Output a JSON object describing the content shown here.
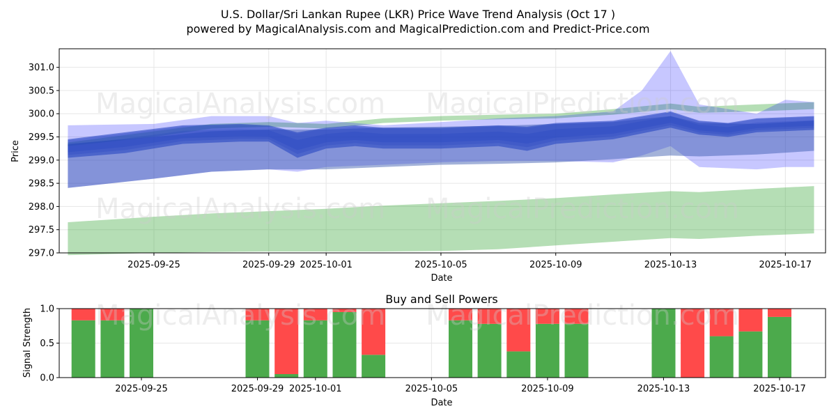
{
  "title_line1": "U.S. Dollar/Sri Lankan Rupee (LKR) Price Wave Trend Analysis (Oct 17 )",
  "title_line2": "powered by MagicalAnalysis.com and MagicalPrediction.com and Predict-Price.com",
  "watermarks": [
    "MagicalAnalysis.com",
    "MagicalPrediction.com"
  ],
  "colors": {
    "green_band": "#2ca02c",
    "blue_band": "#0000ff",
    "blue_dark": "#1f3fbf",
    "buy": "#4caa4c",
    "sell": "#ff4a4a",
    "grid": "#e6e6e6"
  },
  "chart_data": [
    {
      "type": "area",
      "title": "",
      "xlabel": "Date",
      "ylabel": "Price",
      "ylim": [
        297.0,
        301.4
      ],
      "xlim": [
        "2025-09-21.7",
        "2025-10-18.4"
      ],
      "yticks": [
        297.0,
        297.5,
        298.0,
        298.5,
        299.0,
        299.5,
        300.0,
        300.5,
        301.0
      ],
      "ytick_labels": [
        "297.0",
        "297.5",
        "298.0",
        "298.5",
        "299.0",
        "299.5",
        "300.0",
        "300.5",
        "301.0"
      ],
      "xticks": [
        "2025-09-25",
        "2025-09-29",
        "2025-10-01",
        "2025-10-05",
        "2025-10-09",
        "2025-10-13",
        "2025-10-17"
      ],
      "grid": true,
      "series": [
        {
          "name": "green upper band",
          "x": [
            "2025-09-22",
            "2025-09-25",
            "2025-09-27",
            "2025-09-29",
            "2025-10-01",
            "2025-10-03",
            "2025-10-05",
            "2025-10-07",
            "2025-10-09",
            "2025-10-11",
            "2025-10-13",
            "2025-10-14",
            "2025-10-16",
            "2025-10-18"
          ],
          "upper": [
            299.38,
            299.62,
            299.78,
            299.82,
            299.78,
            299.9,
            299.95,
            299.98,
            300.0,
            300.1,
            300.22,
            300.15,
            300.2,
            300.25
          ],
          "lower": [
            299.3,
            299.5,
            299.68,
            299.72,
            299.68,
            299.8,
            299.85,
            299.88,
            299.9,
            299.98,
            300.1,
            300.02,
            300.05,
            300.1
          ]
        },
        {
          "name": "green lower band",
          "x": [
            "2025-09-22",
            "2025-09-25",
            "2025-09-27",
            "2025-09-29",
            "2025-10-01",
            "2025-10-03",
            "2025-10-05",
            "2025-10-07",
            "2025-10-09",
            "2025-10-11",
            "2025-10-13",
            "2025-10-14",
            "2025-10-16",
            "2025-10-18"
          ],
          "upper": [
            297.66,
            297.78,
            297.85,
            297.9,
            297.95,
            298.02,
            298.07,
            298.12,
            298.18,
            298.26,
            298.33,
            298.31,
            298.38,
            298.44
          ],
          "lower": [
            296.95,
            297.0,
            297.02,
            297.03,
            297.03,
            297.03,
            297.04,
            297.08,
            297.16,
            297.24,
            297.32,
            297.3,
            297.37,
            297.42
          ]
        },
        {
          "name": "blue wide range",
          "x": [
            "2025-09-22",
            "2025-09-25",
            "2025-09-27",
            "2025-09-29",
            "2025-09-30",
            "2025-10-01",
            "2025-10-03",
            "2025-10-05",
            "2025-10-07",
            "2025-10-09",
            "2025-10-11",
            "2025-10-12",
            "2025-10-13",
            "2025-10-14",
            "2025-10-16",
            "2025-10-17",
            "2025-10-18"
          ],
          "upper": [
            299.75,
            299.78,
            299.95,
            299.95,
            299.8,
            299.85,
            299.75,
            299.82,
            299.9,
            299.95,
            300.05,
            300.5,
            301.35,
            300.2,
            300.0,
            300.3,
            300.25
          ],
          "lower": [
            298.4,
            298.6,
            298.75,
            298.8,
            298.75,
            298.85,
            298.9,
            298.95,
            298.98,
            298.98,
            298.95,
            299.1,
            299.3,
            298.85,
            298.8,
            298.85,
            298.85
          ]
        },
        {
          "name": "blue core trend",
          "x": [
            "2025-09-22",
            "2025-09-24",
            "2025-09-26",
            "2025-09-28",
            "2025-09-29",
            "2025-09-30",
            "2025-10-01",
            "2025-10-02",
            "2025-10-03",
            "2025-10-05",
            "2025-10-07",
            "2025-10-08",
            "2025-10-09",
            "2025-10-11",
            "2025-10-13",
            "2025-10-14",
            "2025-10-15",
            "2025-10-16",
            "2025-10-18"
          ],
          "upper": [
            299.45,
            299.6,
            299.75,
            299.78,
            299.75,
            299.6,
            299.7,
            299.75,
            299.7,
            299.7,
            299.75,
            299.72,
            299.8,
            299.85,
            300.05,
            299.85,
            299.8,
            299.9,
            299.95
          ],
          "lower": [
            299.05,
            299.15,
            299.35,
            299.4,
            299.4,
            299.05,
            299.25,
            299.3,
            299.25,
            299.25,
            299.3,
            299.2,
            299.35,
            299.45,
            299.7,
            299.55,
            299.5,
            299.6,
            299.65
          ]
        },
        {
          "name": "slate blue band",
          "x": [
            "2025-09-22",
            "2025-09-25",
            "2025-09-27",
            "2025-09-29",
            "2025-10-01",
            "2025-10-03",
            "2025-10-05",
            "2025-10-07",
            "2025-10-09",
            "2025-10-11",
            "2025-10-13",
            "2025-10-14",
            "2025-10-16",
            "2025-10-18"
          ],
          "upper": [
            299.35,
            299.5,
            299.62,
            299.66,
            299.66,
            299.7,
            299.72,
            299.74,
            299.78,
            299.82,
            299.95,
            299.8,
            299.78,
            299.85
          ],
          "lower": [
            298.4,
            298.6,
            298.75,
            298.8,
            298.8,
            298.85,
            298.9,
            298.92,
            298.95,
            299.02,
            299.1,
            299.08,
            299.12,
            299.2
          ]
        }
      ]
    },
    {
      "type": "bar",
      "title": "Buy and Sell Powers",
      "xlabel": "Date",
      "ylabel": "Signal Strength",
      "ylim": [
        0.0,
        1.0
      ],
      "yticks": [
        0.0,
        0.5,
        1.0
      ],
      "ytick_labels": [
        "0.0",
        "0.5",
        "1.0"
      ],
      "xticks": [
        "2025-09-25",
        "2025-09-29",
        "2025-10-01",
        "2025-10-05",
        "2025-10-09",
        "2025-10-13",
        "2025-10-17"
      ],
      "categories": [
        "2025-09-23",
        "2025-09-24",
        "2025-09-25",
        "2025-09-29",
        "2025-09-30",
        "2025-10-01",
        "2025-10-02",
        "2025-10-03",
        "2025-10-06",
        "2025-10-07",
        "2025-10-08",
        "2025-10-09",
        "2025-10-10",
        "2025-10-13",
        "2025-10-14",
        "2025-10-15",
        "2025-10-16",
        "2025-10-17"
      ],
      "series": [
        {
          "name": "Buy",
          "values": [
            0.83,
            0.83,
            1.0,
            0.83,
            0.05,
            0.83,
            0.95,
            0.33,
            0.83,
            0.78,
            0.38,
            0.78,
            0.78,
            1.0,
            0.0,
            0.6,
            0.67,
            0.88
          ]
        },
        {
          "name": "Sell",
          "values": [
            0.17,
            0.17,
            0.0,
            0.17,
            0.95,
            0.17,
            0.05,
            0.67,
            0.17,
            0.22,
            0.62,
            0.22,
            0.22,
            0.0,
            1.0,
            0.4,
            0.33,
            0.12
          ]
        }
      ]
    }
  ]
}
